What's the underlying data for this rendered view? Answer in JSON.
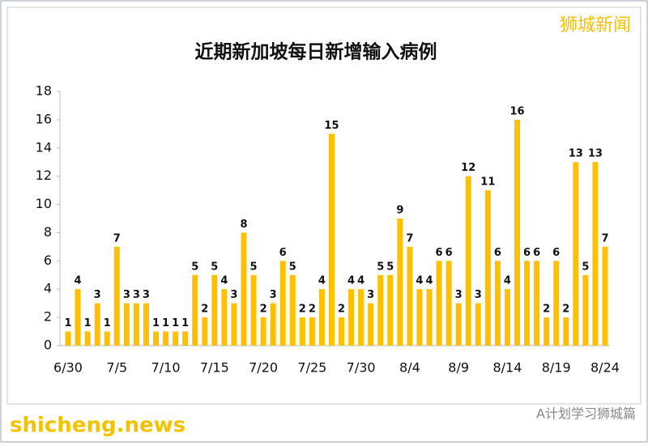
{
  "chart_data": {
    "type": "bar",
    "title": "近期新加坡每日新增输入病例",
    "categories": [
      "6/30",
      null,
      null,
      null,
      null,
      "7/5",
      null,
      null,
      null,
      null,
      "7/10",
      null,
      null,
      null,
      null,
      "7/15",
      null,
      null,
      null,
      null,
      "7/20",
      null,
      null,
      null,
      null,
      "7/25",
      null,
      null,
      null,
      null,
      "7/30",
      null,
      null,
      null,
      null,
      "8/4",
      null,
      null,
      null,
      null,
      "8/9",
      null,
      null,
      null,
      null,
      "8/14",
      null,
      null,
      null,
      null,
      "8/19",
      null,
      null,
      null,
      null,
      "8/24"
    ],
    "values": [
      1,
      4,
      1,
      3,
      1,
      7,
      3,
      3,
      3,
      1,
      1,
      1,
      1,
      5,
      2,
      5,
      4,
      3,
      8,
      5,
      2,
      3,
      6,
      5,
      2,
      2,
      4,
      15,
      2,
      4,
      4,
      3,
      5,
      5,
      9,
      7,
      4,
      4,
      6,
      6,
      3,
      12,
      3,
      11,
      6,
      4,
      16,
      6,
      6,
      2,
      6,
      2,
      13,
      5,
      13,
      7
    ],
    "color": "#ffc000",
    "ylim": [
      0,
      18
    ],
    "yticks": [
      0,
      2,
      4,
      6,
      8,
      10,
      12,
      14,
      16,
      18
    ],
    "grid": false
  },
  "brand": "狮城新闻",
  "watermark": "shicheng.news",
  "account": "A计划学习狮城篇"
}
